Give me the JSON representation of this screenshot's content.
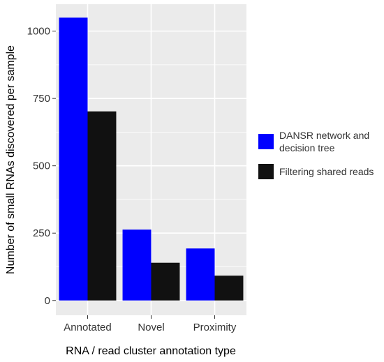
{
  "chart_data": {
    "type": "bar",
    "categories": [
      "Annotated",
      "Novel",
      "Proximity"
    ],
    "series": [
      {
        "name": "DANSR network and decision tree",
        "label_lines": [
          "DANSR network and",
          "decision tree"
        ],
        "values": [
          1050,
          263,
          193
        ],
        "color": "#0000ff"
      },
      {
        "name": "Filtering shared reads",
        "label_lines": [
          "Filtering shared reads"
        ],
        "values": [
          702,
          140,
          92
        ],
        "color": "#111111"
      }
    ],
    "yticks": [
      0,
      250,
      500,
      750,
      1000
    ],
    "ytick_labels": [
      "0",
      "250",
      "500",
      "750",
      "1000"
    ],
    "ylim": [
      -55,
      1100
    ],
    "xlabel": "RNA / read cluster annotation type",
    "ylabel": "Number of small RNAs discovered per sample",
    "grid": true,
    "legend": "right",
    "panel_color": "#ebebeb",
    "grid_color": "#ffffff"
  }
}
